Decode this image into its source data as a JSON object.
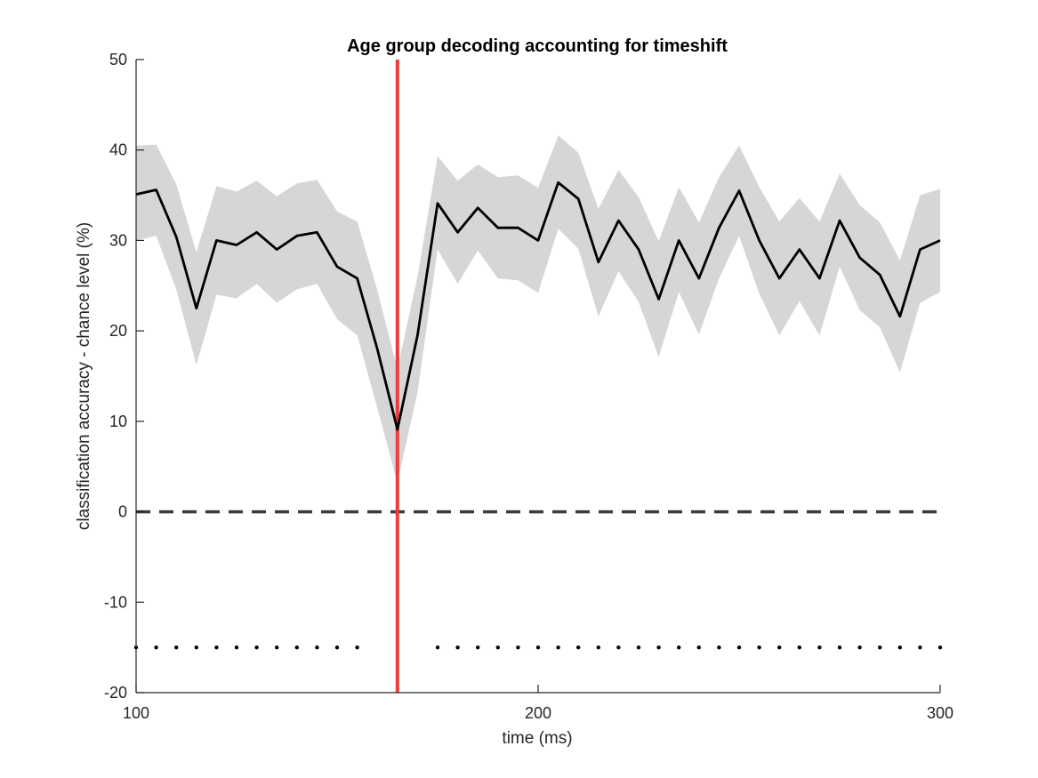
{
  "chart_data": {
    "type": "line",
    "title": "Age group decoding accounting for timeshift",
    "xlabel": "time (ms)",
    "ylabel": "classification accuracy - chance level (%)",
    "xlim": [
      100,
      300
    ],
    "ylim": [
      -20,
      50
    ],
    "xticks": [
      100,
      200,
      300
    ],
    "yticks": [
      -20,
      -10,
      0,
      10,
      20,
      30,
      40,
      50
    ],
    "grid": false,
    "x": [
      100,
      105,
      110,
      115,
      120,
      125,
      130,
      135,
      140,
      145,
      150,
      155,
      160,
      165,
      170,
      175,
      180,
      185,
      190,
      195,
      200,
      205,
      210,
      215,
      220,
      225,
      230,
      235,
      240,
      245,
      250,
      255,
      260,
      265,
      270,
      275,
      280,
      285,
      290,
      295,
      300
    ],
    "series": [
      {
        "values": [
          35.1,
          35.6,
          30.4,
          22.5,
          30.0,
          29.5,
          30.9,
          29.0,
          30.5,
          30.9,
          27.1,
          25.8,
          18.0,
          9.1,
          19.5,
          34.1,
          30.9,
          33.6,
          31.4,
          31.4,
          30.0,
          36.4,
          34.6,
          27.6,
          32.2,
          29.0,
          23.5,
          30.0,
          25.8,
          31.4,
          35.5,
          30.0,
          25.8,
          29.0,
          25.8,
          32.2,
          28.1,
          26.2,
          21.6,
          29.0,
          30.0
        ],
        "lower": [
          30.0,
          30.5,
          24.6,
          16.2,
          24.0,
          23.6,
          25.2,
          23.1,
          24.6,
          25.2,
          21.3,
          19.5,
          11.5,
          3.2,
          13.2,
          29.0,
          25.2,
          28.9,
          25.8,
          25.6,
          24.2,
          31.3,
          29.1,
          21.6,
          26.6,
          23.2,
          17.1,
          24.3,
          19.6,
          25.8,
          30.5,
          24.1,
          19.5,
          23.3,
          19.5,
          27.1,
          22.3,
          20.4,
          15.4,
          23.1,
          24.3
        ],
        "upper": [
          40.5,
          40.6,
          36.2,
          28.7,
          36.0,
          35.4,
          36.6,
          34.9,
          36.3,
          36.7,
          33.2,
          32.1,
          24.5,
          15.8,
          26.0,
          39.3,
          36.6,
          38.4,
          37.0,
          37.2,
          35.8,
          41.6,
          39.7,
          33.5,
          37.8,
          34.8,
          29.9,
          35.9,
          32.0,
          37.0,
          40.5,
          35.9,
          32.1,
          34.7,
          32.1,
          37.4,
          33.9,
          32.0,
          27.8,
          35.0,
          35.7
        ]
      }
    ],
    "reference_lines": {
      "zero_y": 0,
      "marker_x": 165,
      "marker_color": "#ee3b3b"
    },
    "significance_dots": {
      "y": -15,
      "x": [
        100,
        105,
        110,
        115,
        120,
        125,
        130,
        135,
        140,
        145,
        150,
        155,
        175,
        180,
        185,
        190,
        195,
        200,
        205,
        210,
        215,
        220,
        225,
        230,
        235,
        240,
        245,
        250,
        255,
        260,
        265,
        270,
        275,
        280,
        285,
        290,
        295,
        300
      ]
    },
    "colors": {
      "line": "#000000",
      "band": "#d6d6d6",
      "zero_line": "#3c3c3c",
      "axis": "#262626"
    }
  }
}
